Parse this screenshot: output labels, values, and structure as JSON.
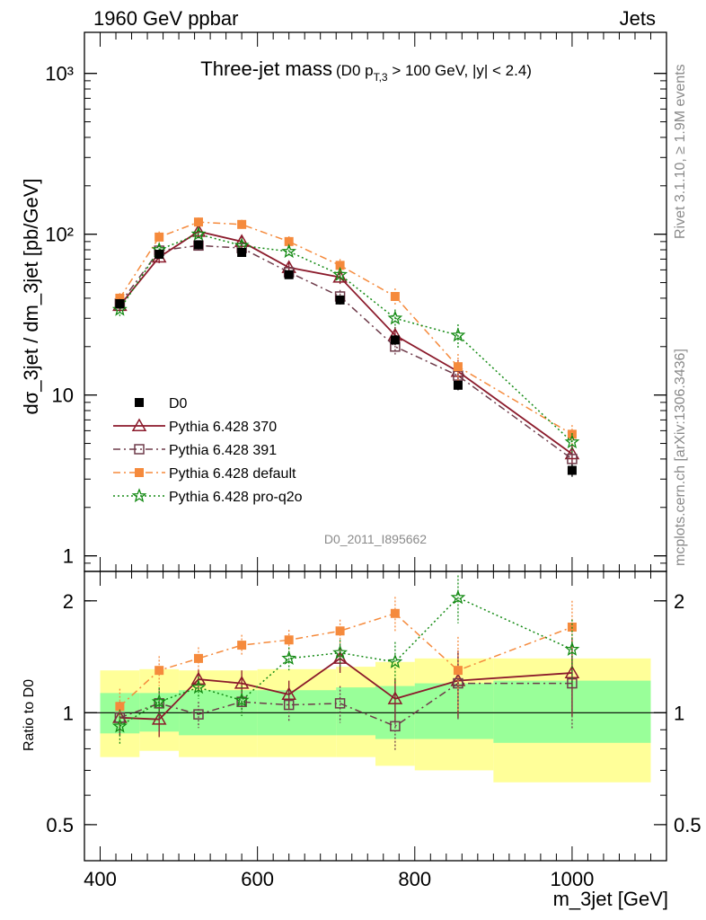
{
  "header": {
    "left": "1960 GeV ppbar",
    "right": "Jets",
    "title_main": "Three-jet mass",
    "title_sub_pre": "(D0 p",
    "title_sub_sub": "T,3",
    "title_sub_post": " > 100 GeV, |y| < 2.4)",
    "side_right_top": "Rivet 3.1.10, ≥ 1.9M events",
    "side_right_bottom": "mcplots.cern.ch [arXiv:1306.3436]",
    "watermark": "D0_2011_I895662"
  },
  "chart_data": [
    {
      "type": "scatter",
      "title": "Three-jet mass (D0 pT,3 > 100 GeV, |y| < 2.4)",
      "ylabel": "dσ_3jet / dm_3jet [pb/GeV]",
      "yscale": "log",
      "ylim": [
        0.8,
        1800
      ],
      "xlim": [
        380,
        1120
      ],
      "yticks": [
        {
          "v": 1,
          "label": "1"
        },
        {
          "v": 10,
          "label": "10"
        },
        {
          "v": 100,
          "label": "10²"
        },
        {
          "v": 1000,
          "label": "10³"
        }
      ],
      "x": [
        425,
        475,
        525,
        580,
        640,
        705,
        775,
        855,
        1000
      ],
      "legend_position": "lower-left",
      "series": [
        {
          "name": "D0",
          "color": "#000000",
          "marker": "square-filled",
          "line": "none",
          "values": [
            37,
            75,
            86,
            77,
            56,
            39,
            22,
            11.5,
            3.4
          ],
          "err": [
            2.5,
            4,
            4,
            3.5,
            3,
            2.5,
            1.5,
            0.8,
            0.3
          ]
        },
        {
          "name": "Pythia 6.428 370",
          "color": "#8b1a2b",
          "marker": "triangle-open",
          "line": "solid",
          "values": [
            36,
            72,
            104,
            90,
            62,
            54,
            23.5,
            14,
            4.3
          ],
          "err": [
            3,
            6,
            7,
            7,
            5,
            5,
            3,
            2.5,
            0.6
          ]
        },
        {
          "name": "Pythia 6.428 391",
          "color": "#6e3b4a",
          "marker": "square-open",
          "line": "dashdot",
          "values": [
            37,
            79,
            85,
            82,
            58,
            41,
            20,
            13.2,
            4.0
          ],
          "err": [
            3,
            6,
            6,
            6,
            5,
            4,
            2.5,
            2,
            0.6
          ]
        },
        {
          "name": "Pythia 6.428 default",
          "color": "#f58a3c",
          "marker": "square-filled",
          "line": "dashdot",
          "values": [
            40,
            96,
            119,
            115,
            90,
            64,
            41,
            15,
            5.7
          ],
          "err": [
            3,
            8,
            8,
            8,
            7,
            6,
            5,
            3,
            0.8
          ]
        },
        {
          "name": "Pythia 6.428 pro-q2o",
          "color": "#138a13",
          "marker": "star",
          "line": "dotted",
          "values": [
            34,
            80,
            100,
            85,
            78,
            56,
            30,
            23.5,
            5.1
          ],
          "err": [
            3,
            6,
            7,
            6,
            6,
            5,
            4,
            4,
            0.7
          ]
        }
      ]
    },
    {
      "type": "scatter",
      "ylabel": "Ratio to D0",
      "xlabel": "m_3jet [GeV]",
      "yscale": "log",
      "ylim": [
        0.4,
        2.4
      ],
      "xlim": [
        380,
        1120
      ],
      "yticks": [
        {
          "v": 0.5,
          "label": "0.5"
        },
        {
          "v": 1,
          "label": "1"
        },
        {
          "v": 2,
          "label": "2"
        }
      ],
      "xticks": [
        {
          "v": 400,
          "label": "400"
        },
        {
          "v": 600,
          "label": "600"
        },
        {
          "v": 800,
          "label": "800"
        },
        {
          "v": 1000,
          "label": "1000"
        }
      ],
      "x": [
        425,
        475,
        525,
        580,
        640,
        705,
        775,
        855,
        1000
      ],
      "bands": {
        "edges": [
          400,
          450,
          500,
          600,
          700,
          750,
          800,
          900,
          1100
        ],
        "green_lo": [
          0.88,
          0.89,
          0.87,
          0.87,
          0.87,
          0.85,
          0.85,
          0.83,
          0.82
        ],
        "green_hi": [
          1.13,
          1.13,
          1.15,
          1.15,
          1.17,
          1.18,
          1.2,
          1.22,
          1.23
        ],
        "yellow_lo": [
          0.76,
          0.79,
          0.76,
          0.76,
          0.76,
          0.72,
          0.7,
          0.65,
          0.59
        ],
        "yellow_hi": [
          1.3,
          1.31,
          1.3,
          1.31,
          1.33,
          1.37,
          1.4,
          1.4,
          1.43
        ]
      },
      "series": [
        {
          "name": "Pythia 6.428 370",
          "color": "#8b1a2b",
          "marker": "triangle-open",
          "line": "solid",
          "values": [
            0.97,
            0.96,
            1.23,
            1.2,
            1.12,
            1.4,
            1.09,
            1.22,
            1.28
          ],
          "err": [
            0.1,
            0.1,
            0.08,
            0.1,
            0.1,
            0.12,
            0.15,
            0.25,
            0.3
          ]
        },
        {
          "name": "Pythia 6.428 391",
          "color": "#6e3b4a",
          "marker": "square-open",
          "line": "dashdot",
          "values": [
            0.97,
            1.06,
            0.99,
            1.07,
            1.05,
            1.06,
            0.92,
            1.2,
            1.2
          ],
          "err": [
            0.1,
            0.1,
            0.08,
            0.08,
            0.1,
            0.12,
            0.13,
            0.25,
            0.3
          ]
        },
        {
          "name": "Pythia 6.428 default",
          "color": "#f58a3c",
          "marker": "square-filled",
          "line": "dashdot",
          "values": [
            1.04,
            1.3,
            1.4,
            1.52,
            1.57,
            1.66,
            1.85,
            1.3,
            1.7
          ],
          "err": [
            0.12,
            0.12,
            0.1,
            0.1,
            0.1,
            0.12,
            0.2,
            0.3,
            0.3
          ]
        },
        {
          "name": "Pythia 6.428 pro-q2o",
          "color": "#138a13",
          "marker": "star",
          "line": "dotted",
          "values": [
            0.92,
            1.07,
            1.17,
            1.08,
            1.4,
            1.45,
            1.37,
            2.04,
            1.48
          ],
          "err": [
            0.1,
            0.1,
            0.08,
            0.1,
            0.1,
            0.12,
            0.18,
            0.3,
            0.3
          ]
        }
      ]
    }
  ]
}
